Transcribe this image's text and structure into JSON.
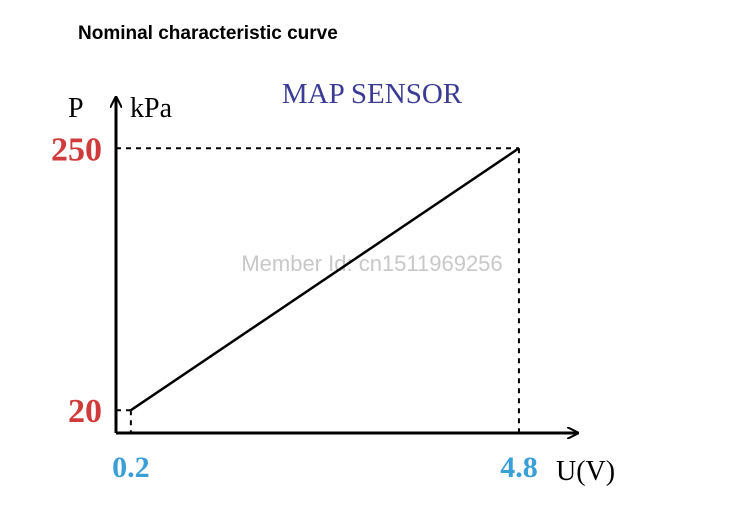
{
  "chart_data": {
    "type": "line",
    "title": "Nominal characteristic curve",
    "subtitle": "MAP SENSOR",
    "y_label": "P",
    "y_unit": "kPa",
    "x_label": "U(V)",
    "watermark": "Member Id: cn1511969256",
    "x": [
      0.2,
      4.8
    ],
    "values": [
      20,
      250
    ],
    "color": "#000000",
    "xlim": [
      0,
      5.5
    ],
    "ylim": [
      0,
      295
    ],
    "xticks": [
      0.2,
      4.8
    ],
    "yticks": [
      20,
      250
    ],
    "xtick_color": "#3a9fd6",
    "ytick_color": "#d03a3a"
  }
}
